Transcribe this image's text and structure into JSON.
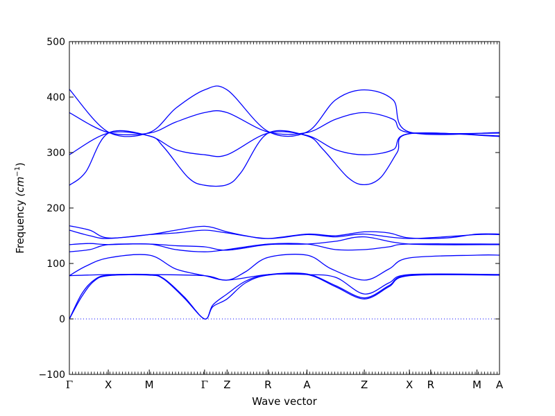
{
  "chart_data": {
    "type": "line",
    "title": "",
    "xlabel": "Wave vector",
    "ylabel_main": "Frequency ",
    "ylabel_unit": "(cm",
    "ylabel_exp": "−1",
    "ylabel_close": ")",
    "ylim": [
      -100,
      500
    ],
    "yticks": [
      -100,
      0,
      100,
      200,
      300,
      400,
      500
    ],
    "xlim": [
      0,
      10.5
    ],
    "zero_line": true,
    "line_color": "#0000ff",
    "high_symmetry_points": [
      {
        "label": "Γ",
        "x": 0
      },
      {
        "label": "X",
        "x": 0.95
      },
      {
        "label": "M",
        "x": 1.95
      },
      {
        "label": "Γ",
        "x": 3.3
      },
      {
        "label": "Z",
        "x": 3.85
      },
      {
        "label": "R",
        "x": 4.85
      },
      {
        "label": "A",
        "x": 5.8
      },
      {
        "label": "Z",
        "x": 7.2
      },
      {
        "label": "X",
        "x": 8.3
      },
      {
        "label": "R",
        "x": 8.82
      },
      {
        "label": "M",
        "x": 9.95
      },
      {
        "label": "A",
        "x": 10.5
      }
    ],
    "series": [
      {
        "values": [
          [
            0,
            414
          ],
          [
            0.95,
            337
          ],
          [
            1.95,
            336
          ],
          [
            2.6,
            380
          ],
          [
            3.3,
            413
          ],
          [
            3.85,
            413
          ],
          [
            4.85,
            338
          ],
          [
            5.8,
            337
          ],
          [
            6.5,
            395
          ],
          [
            7.2,
            413
          ],
          [
            7.9,
            395
          ],
          [
            8.3,
            337
          ],
          [
            10.5,
            336
          ]
        ]
      },
      {
        "values": [
          [
            0,
            372
          ],
          [
            0.95,
            336
          ],
          [
            1.95,
            335
          ],
          [
            2.6,
            355
          ],
          [
            3.3,
            372
          ],
          [
            3.85,
            372
          ],
          [
            4.85,
            337
          ],
          [
            5.8,
            336
          ],
          [
            6.5,
            360
          ],
          [
            7.2,
            372
          ],
          [
            7.9,
            360
          ],
          [
            8.3,
            336
          ],
          [
            10.5,
            335
          ]
        ]
      },
      {
        "values": [
          [
            0,
            296
          ],
          [
            0.95,
            335
          ],
          [
            1.95,
            330
          ],
          [
            2.6,
            305
          ],
          [
            3.3,
            296
          ],
          [
            3.85,
            296
          ],
          [
            4.85,
            335
          ],
          [
            5.8,
            331
          ],
          [
            6.5,
            305
          ],
          [
            7.2,
            296
          ],
          [
            7.9,
            305
          ],
          [
            8.3,
            334
          ],
          [
            10.5,
            330
          ]
        ]
      },
      {
        "values": [
          [
            0,
            241
          ],
          [
            0.4,
            265
          ],
          [
            0.95,
            335
          ],
          [
            1.95,
            330
          ],
          [
            2.3,
            310
          ],
          [
            2.9,
            255
          ],
          [
            3.3,
            241
          ],
          [
            3.85,
            242
          ],
          [
            4.2,
            265
          ],
          [
            4.85,
            335
          ],
          [
            5.8,
            330
          ],
          [
            6.2,
            305
          ],
          [
            6.8,
            255
          ],
          [
            7.2,
            242
          ],
          [
            7.6,
            255
          ],
          [
            8.0,
            300
          ],
          [
            8.3,
            334
          ],
          [
            10.5,
            329
          ]
        ]
      },
      {
        "values": [
          [
            0,
            168
          ],
          [
            0.5,
            160
          ],
          [
            0.95,
            146
          ],
          [
            1.95,
            152
          ],
          [
            2.6,
            160
          ],
          [
            3.3,
            167
          ],
          [
            3.85,
            157
          ],
          [
            4.3,
            150
          ],
          [
            4.85,
            145
          ],
          [
            5.8,
            153
          ],
          [
            6.5,
            150
          ],
          [
            7.2,
            157
          ],
          [
            7.8,
            155
          ],
          [
            8.3,
            146
          ],
          [
            9.2,
            146
          ],
          [
            9.95,
            153
          ],
          [
            10.5,
            153
          ]
        ]
      },
      {
        "values": [
          [
            0,
            160
          ],
          [
            0.5,
            150
          ],
          [
            0.95,
            145
          ],
          [
            1.95,
            152
          ],
          [
            2.6,
            155
          ],
          [
            3.3,
            160
          ],
          [
            3.85,
            155
          ],
          [
            4.85,
            145
          ],
          [
            5.8,
            152
          ],
          [
            6.5,
            148
          ],
          [
            7.2,
            153
          ],
          [
            8.3,
            145
          ],
          [
            9.95,
            152
          ],
          [
            10.5,
            152
          ]
        ]
      },
      {
        "values": [
          [
            0,
            134
          ],
          [
            0.5,
            136
          ],
          [
            0.95,
            134
          ],
          [
            1.95,
            135
          ],
          [
            2.6,
            125
          ],
          [
            3.3,
            121
          ],
          [
            3.85,
            125
          ],
          [
            4.85,
            135
          ],
          [
            5.8,
            135
          ],
          [
            6.5,
            125
          ],
          [
            7.2,
            125
          ],
          [
            7.8,
            130
          ],
          [
            8.3,
            135
          ],
          [
            10.5,
            135
          ]
        ]
      },
      {
        "values": [
          [
            0,
            121
          ],
          [
            0.5,
            125
          ],
          [
            0.95,
            134
          ],
          [
            1.95,
            135
          ],
          [
            2.6,
            132
          ],
          [
            3.3,
            130
          ],
          [
            3.85,
            124
          ],
          [
            4.85,
            134
          ],
          [
            5.8,
            135
          ],
          [
            6.5,
            140
          ],
          [
            7.2,
            148
          ],
          [
            8.3,
            135
          ],
          [
            10.5,
            134
          ]
        ]
      },
      {
        "values": [
          [
            0,
            78
          ],
          [
            0.4,
            95
          ],
          [
            0.95,
            110
          ],
          [
            1.95,
            115
          ],
          [
            2.6,
            90
          ],
          [
            3.3,
            78
          ],
          [
            3.85,
            70
          ],
          [
            4.3,
            85
          ],
          [
            4.85,
            111
          ],
          [
            5.8,
            115
          ],
          [
            6.4,
            90
          ],
          [
            7.2,
            70
          ],
          [
            7.8,
            90
          ],
          [
            8.3,
            110
          ],
          [
            9.95,
            115
          ],
          [
            10.5,
            115
          ]
        ]
      },
      {
        "values": [
          [
            0,
            78
          ],
          [
            0.95,
            80
          ],
          [
            1.95,
            80
          ],
          [
            3.3,
            78
          ],
          [
            3.85,
            70
          ],
          [
            4.85,
            80
          ],
          [
            5.8,
            80
          ],
          [
            6.5,
            75
          ],
          [
            7.2,
            45
          ],
          [
            7.8,
            65
          ],
          [
            8.3,
            80
          ],
          [
            10.5,
            80
          ]
        ]
      },
      {
        "values": [
          [
            0,
            0
          ],
          [
            0.3,
            45
          ],
          [
            0.6,
            70
          ],
          [
            0.95,
            79
          ],
          [
            1.95,
            80
          ],
          [
            2.3,
            73
          ],
          [
            2.8,
            40
          ],
          [
            3.3,
            0
          ],
          [
            3.5,
            25
          ],
          [
            3.85,
            45
          ],
          [
            4.3,
            68
          ],
          [
            4.85,
            80
          ],
          [
            5.8,
            81
          ],
          [
            6.5,
            60
          ],
          [
            7.2,
            38
          ],
          [
            7.8,
            60
          ],
          [
            8.3,
            79
          ],
          [
            10.5,
            80
          ]
        ]
      },
      {
        "values": [
          [
            0,
            0
          ],
          [
            0.3,
            40
          ],
          [
            0.6,
            68
          ],
          [
            0.95,
            78
          ],
          [
            1.95,
            79
          ],
          [
            2.3,
            72
          ],
          [
            2.8,
            38
          ],
          [
            3.3,
            0
          ],
          [
            3.5,
            22
          ],
          [
            3.85,
            36
          ],
          [
            4.3,
            65
          ],
          [
            4.85,
            79
          ],
          [
            5.8,
            80
          ],
          [
            6.5,
            58
          ],
          [
            7.2,
            36
          ],
          [
            7.8,
            58
          ],
          [
            8.3,
            78
          ],
          [
            10.5,
            79
          ]
        ]
      }
    ]
  }
}
